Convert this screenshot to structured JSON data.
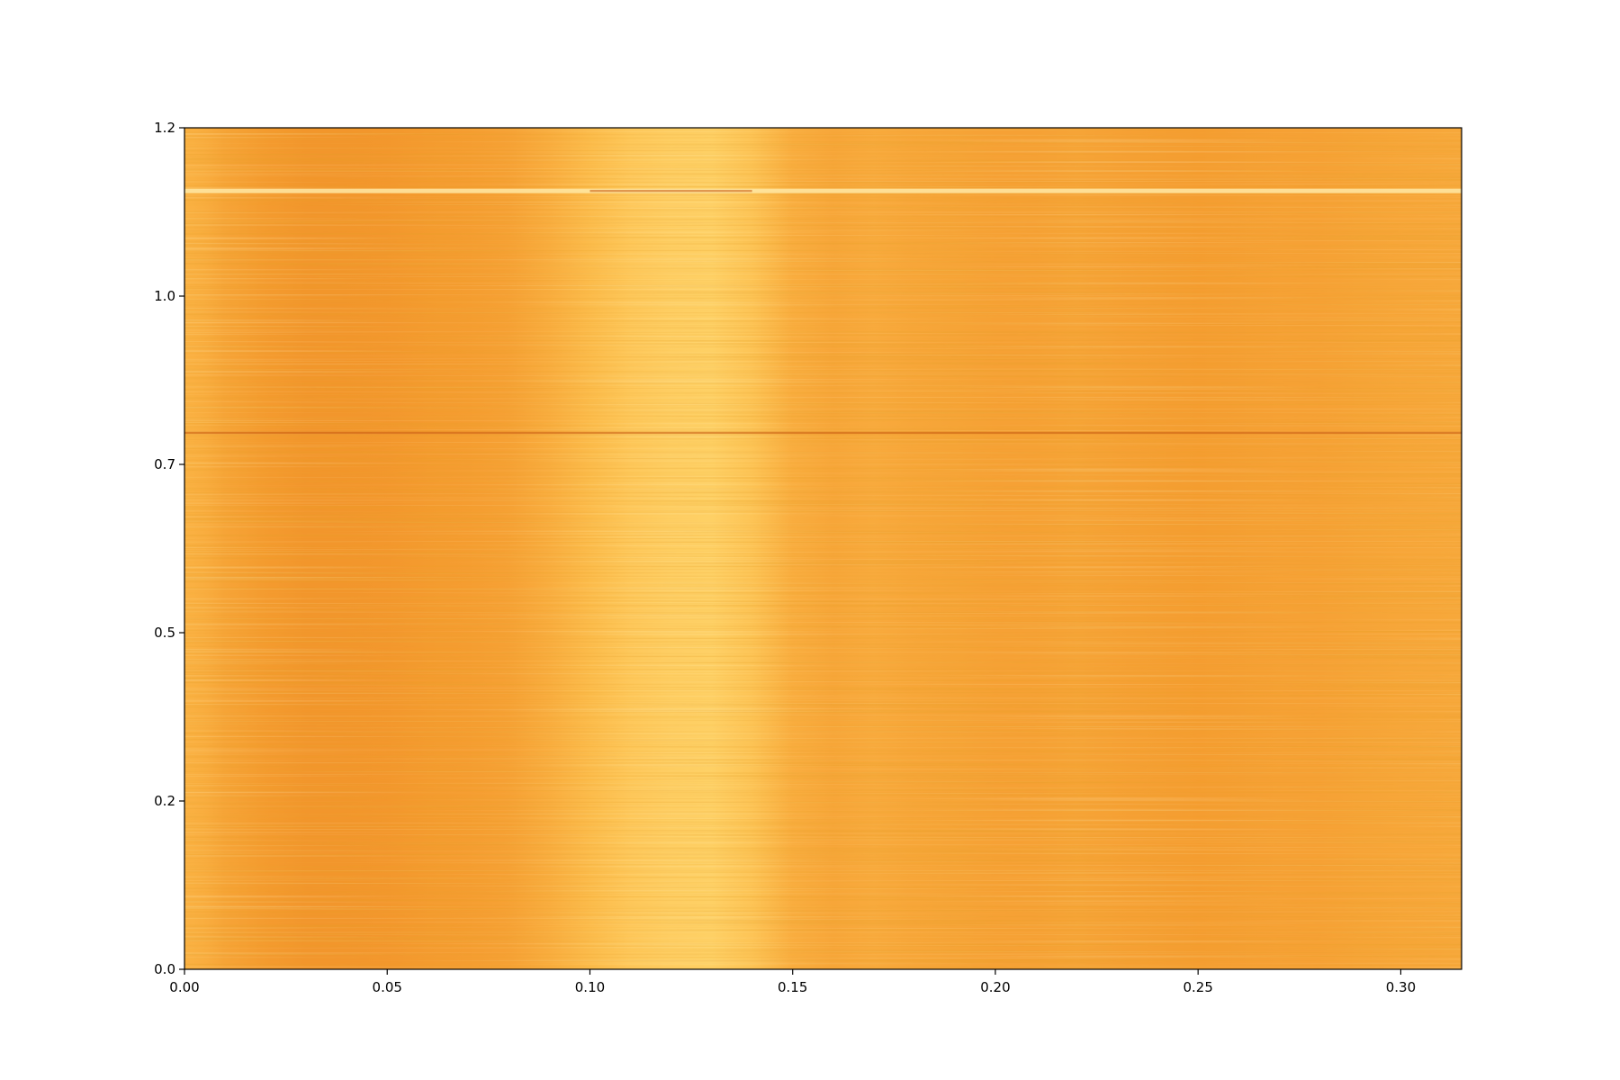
{
  "chart_data": {
    "type": "heatmap",
    "title": "",
    "xlabel": "",
    "ylabel": "",
    "xlim": [
      0.0,
      0.315
    ],
    "ylim": [
      0.0,
      1.2
    ],
    "x_ticks": [
      {
        "value": 0.0,
        "label": "0.00"
      },
      {
        "value": 0.05,
        "label": "0.05"
      },
      {
        "value": 0.1,
        "label": "0.10"
      },
      {
        "value": 0.15,
        "label": "0.15"
      },
      {
        "value": 0.2,
        "label": "0.20"
      },
      {
        "value": 0.25,
        "label": "0.25"
      },
      {
        "value": 0.3,
        "label": "0.30"
      }
    ],
    "y_ticks": [
      {
        "value": 0.0,
        "label": "0.0"
      },
      {
        "value": 0.24,
        "label": "0.2"
      },
      {
        "value": 0.48,
        "label": "0.5"
      },
      {
        "value": 0.72,
        "label": "0.7"
      },
      {
        "value": 0.96,
        "label": "1.0"
      },
      {
        "value": 1.2,
        "label": "1.2"
      }
    ],
    "colormap": [
      "#ffe07a",
      "#fdbf4f",
      "#f49a2e",
      "#e0701a"
    ],
    "column_intensity": {
      "x": [
        0.0,
        0.005,
        0.01,
        0.02,
        0.03,
        0.04,
        0.05,
        0.06,
        0.07,
        0.08,
        0.09,
        0.1,
        0.11,
        0.12,
        0.13,
        0.14,
        0.15,
        0.16,
        0.17,
        0.18,
        0.19,
        0.2,
        0.21,
        0.22,
        0.23,
        0.24,
        0.25,
        0.26,
        0.27,
        0.28,
        0.29,
        0.3,
        0.315
      ],
      "values": [
        0.45,
        0.5,
        0.58,
        0.66,
        0.7,
        0.7,
        0.69,
        0.66,
        0.64,
        0.6,
        0.5,
        0.36,
        0.24,
        0.18,
        0.16,
        0.28,
        0.5,
        0.56,
        0.52,
        0.56,
        0.58,
        0.6,
        0.6,
        0.58,
        0.6,
        0.62,
        0.64,
        0.62,
        0.6,
        0.6,
        0.58,
        0.56,
        0.54
      ]
    },
    "streaks": [
      {
        "y": 1.11,
        "x_range": [
          0.0,
          0.315
        ],
        "tone": "light"
      },
      {
        "y": 1.11,
        "x_range": [
          0.1,
          0.14
        ],
        "tone": "dark"
      },
      {
        "y": 0.765,
        "x_range": [
          0.0,
          0.315
        ],
        "tone": "dark"
      }
    ],
    "grid": false,
    "legend": "none"
  }
}
